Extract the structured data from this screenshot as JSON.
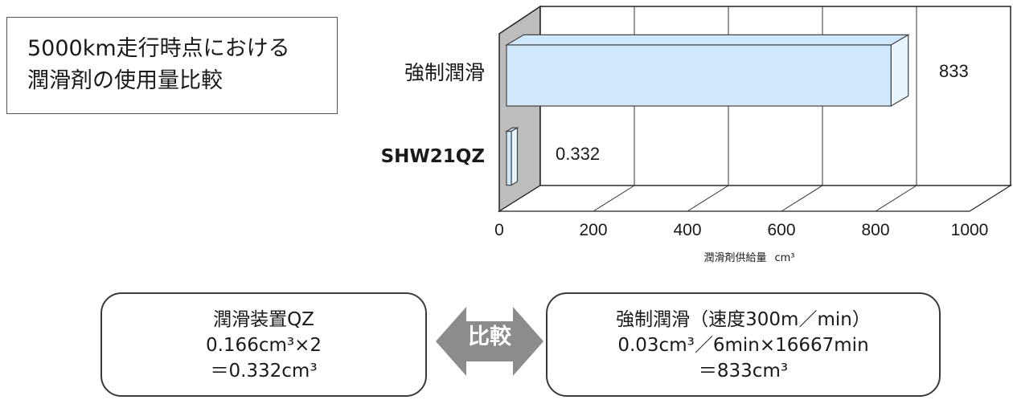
{
  "title": {
    "line1": "5000km走行時点における",
    "line2": "潤滑剤の使用量比較"
  },
  "chart_data": {
    "type": "bar",
    "orientation": "horizontal",
    "style": "3d",
    "categories": [
      "強制潤滑",
      "SHW21QZ"
    ],
    "values": [
      833,
      0.332
    ],
    "data_labels": [
      "833",
      "0.332"
    ],
    "xlabel": "潤滑剤供給量",
    "xlabel_unit": "cm³",
    "xlim": [
      0,
      1000
    ],
    "xticks": [
      "0",
      "200",
      "400",
      "600",
      "800",
      "1000"
    ],
    "xtick_values": [
      0,
      200,
      400,
      600,
      800,
      1000
    ],
    "grid": true,
    "bar_color": "#cfe8fb",
    "bar_stroke": "#444444",
    "wall_color": "#bdbdbd"
  },
  "compare": {
    "left": {
      "line1": "潤滑装置QZ",
      "line2": "0.166cm³×2",
      "line3": "＝0.332cm³"
    },
    "label": "比較",
    "arrow_color": "#8c8c8c",
    "right": {
      "line1": "強制潤滑（速度300m／min）",
      "line2": "0.03cm³／6min×16667min",
      "line3": "＝833cm³"
    }
  }
}
